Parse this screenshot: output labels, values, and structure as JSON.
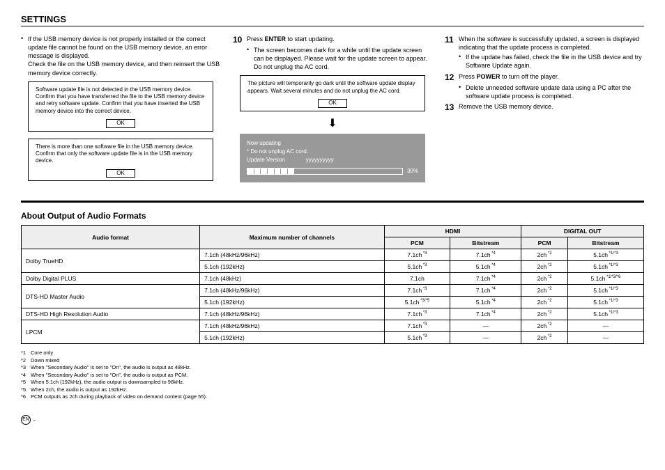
{
  "title": "SETTINGS",
  "col1": {
    "intro_bullet": "If the USB memory device is not properly installed or the correct update file cannot be found on the USB memory device, an error message is displayed.",
    "intro_follow": "Check the file on the USB memory device, and then reinsert the USB memory device correctly.",
    "dialog1": "Software update file is not detected in the USB memory device. Confirm that you have transferred the file to the USB memory device and retry software update. Confirm that you have inserted the USB memory device into the correct device.",
    "dialog2": "There is more than one software file in the USB memory device. Confirm that only the software update file is in the USB memory device.",
    "ok": "OK"
  },
  "col2": {
    "step10_num": "10",
    "step10_a": "Press ",
    "step10_b": "ENTER",
    "step10_c": " to start updating.",
    "step10_sub": "The screen becomes dark for a while until the update screen can be displayed. Please wait for the update screen to appear. Do not unplug the AC cord.",
    "dialog3": "The picture will temporarily go dark until the software update display appears. Wait several minutes and do not unplug the AC cord.",
    "ok": "OK",
    "panel": {
      "line1": "Now updating",
      "line2": "* Do not unplug AC cord.",
      "uv_label": "Update Version",
      "uv_value": "yyyyyyyyyy",
      "pct": "30%",
      "progress_pct": 30,
      "segs": 7
    }
  },
  "col3": {
    "s11_num": "11",
    "s11_text": "When the software is successfully updated, a screen is displayed indicating that the update process is completed.",
    "s11_sub": "If the update has failed, check the file in the USB device and try Software Update again.",
    "s12_num": "12",
    "s12_a": "Press ",
    "s12_b": "POWER",
    "s12_c": " to turn off the player.",
    "s12_sub": "Delete unneeded software update data using a PC after the software update process is completed.",
    "s13_num": "13",
    "s13_text": "Remove the USB memory device."
  },
  "audio_heading": "About Output of Audio Formats",
  "table": {
    "h_audio": "Audio format",
    "h_max": "Maximum number of channels",
    "h_hdmi": "HDMI",
    "h_digital": "DIGITAL OUT",
    "h_pcm": "PCM",
    "h_bit": "Bitstream",
    "rows": [
      {
        "fmt": "Dolby TrueHD",
        "rs": 2,
        "max": "7.1ch (48kHz/96kHz)",
        "hp": "7.1ch",
        "hp_s": "*3",
        "hb": "7.1ch",
        "hb_s": "*4",
        "dp": "2ch",
        "dp_s": "*2",
        "db": "5.1ch",
        "db_s": "*1/*3"
      },
      {
        "max": "5.1ch (192kHz)",
        "hp": "5.1ch",
        "hp_s": "*3",
        "hb": "5.1ch",
        "hb_s": "*4",
        "dp": "2ch",
        "dp_s": "*2",
        "db": "5.1ch",
        "db_s": "*1/*3"
      },
      {
        "fmt": "Dolby Digital PLUS",
        "rs": 1,
        "max": "7.1ch (48kHz)",
        "hp": "7.1ch",
        "hp_s": "",
        "hb": "7.1ch",
        "hb_s": "*4",
        "dp": "2ch",
        "dp_s": "*2",
        "db": "5.1ch",
        "db_s": "*1/*3/*6"
      },
      {
        "fmt": "DTS-HD Master Audio",
        "rs": 2,
        "max": "7.1ch (48kHz/96kHz)",
        "hp": "7.1ch",
        "hp_s": "*3",
        "hb": "7.1ch",
        "hb_s": "*4",
        "dp": "2ch",
        "dp_s": "*2",
        "db": "5.1ch",
        "db_s": "*1/*3"
      },
      {
        "max": "5.1ch (192kHz)",
        "hp": "5.1ch",
        "hp_s": "*3/*5",
        "hb": "5.1ch",
        "hb_s": "*4",
        "dp": "2ch",
        "dp_s": "*2",
        "db": "5.1ch",
        "db_s": "*1/*3"
      },
      {
        "fmt": "DTS-HD High Resolution Audio",
        "rs": 1,
        "max": "7.1ch (48kHz/96kHz)",
        "hp": "7.1ch",
        "hp_s": "*3",
        "hb": "7.1ch",
        "hb_s": "*4",
        "dp": "2ch",
        "dp_s": "*2",
        "db": "5.1ch",
        "db_s": "*1/*3"
      },
      {
        "fmt": "LPCM",
        "rs": 2,
        "max": "7.1ch (48kHz/96kHz)",
        "hp": "7.1ch",
        "hp_s": "*3",
        "hb": "—",
        "hb_s": "",
        "dp": "2ch",
        "dp_s": "*2",
        "db": "—",
        "db_s": ""
      },
      {
        "max": "5.1ch (192kHz)",
        "hp": "5.1ch",
        "hp_s": "*3",
        "hb": "—",
        "hb_s": "",
        "dp": "2ch",
        "dp_s": "*2",
        "db": "—",
        "db_s": ""
      }
    ]
  },
  "footnotes": [
    {
      "m": "*1",
      "t": "Core only"
    },
    {
      "m": "*2",
      "t": "Down mixed"
    },
    {
      "m": "*3",
      "t": "When \"Secondary Audio\" is set to \"On\", the audio is output as 48kHz."
    },
    {
      "m": "*4",
      "t": "When \"Secondary Audio\" is set to \"On\", the audio is output as PCM."
    },
    {
      "m": "*5",
      "t": "When 5.1ch (192kHz), the audio output is downsampled to 96kHz."
    },
    {
      "m": "*5",
      "t": "When 2ch, the audio is output as 192kHz."
    },
    {
      "m": "*6",
      "t": "PCM outputs as 2ch during playback of video on demand content (page 55)."
    }
  ],
  "page_lang": "EN",
  "page_dash": "-"
}
